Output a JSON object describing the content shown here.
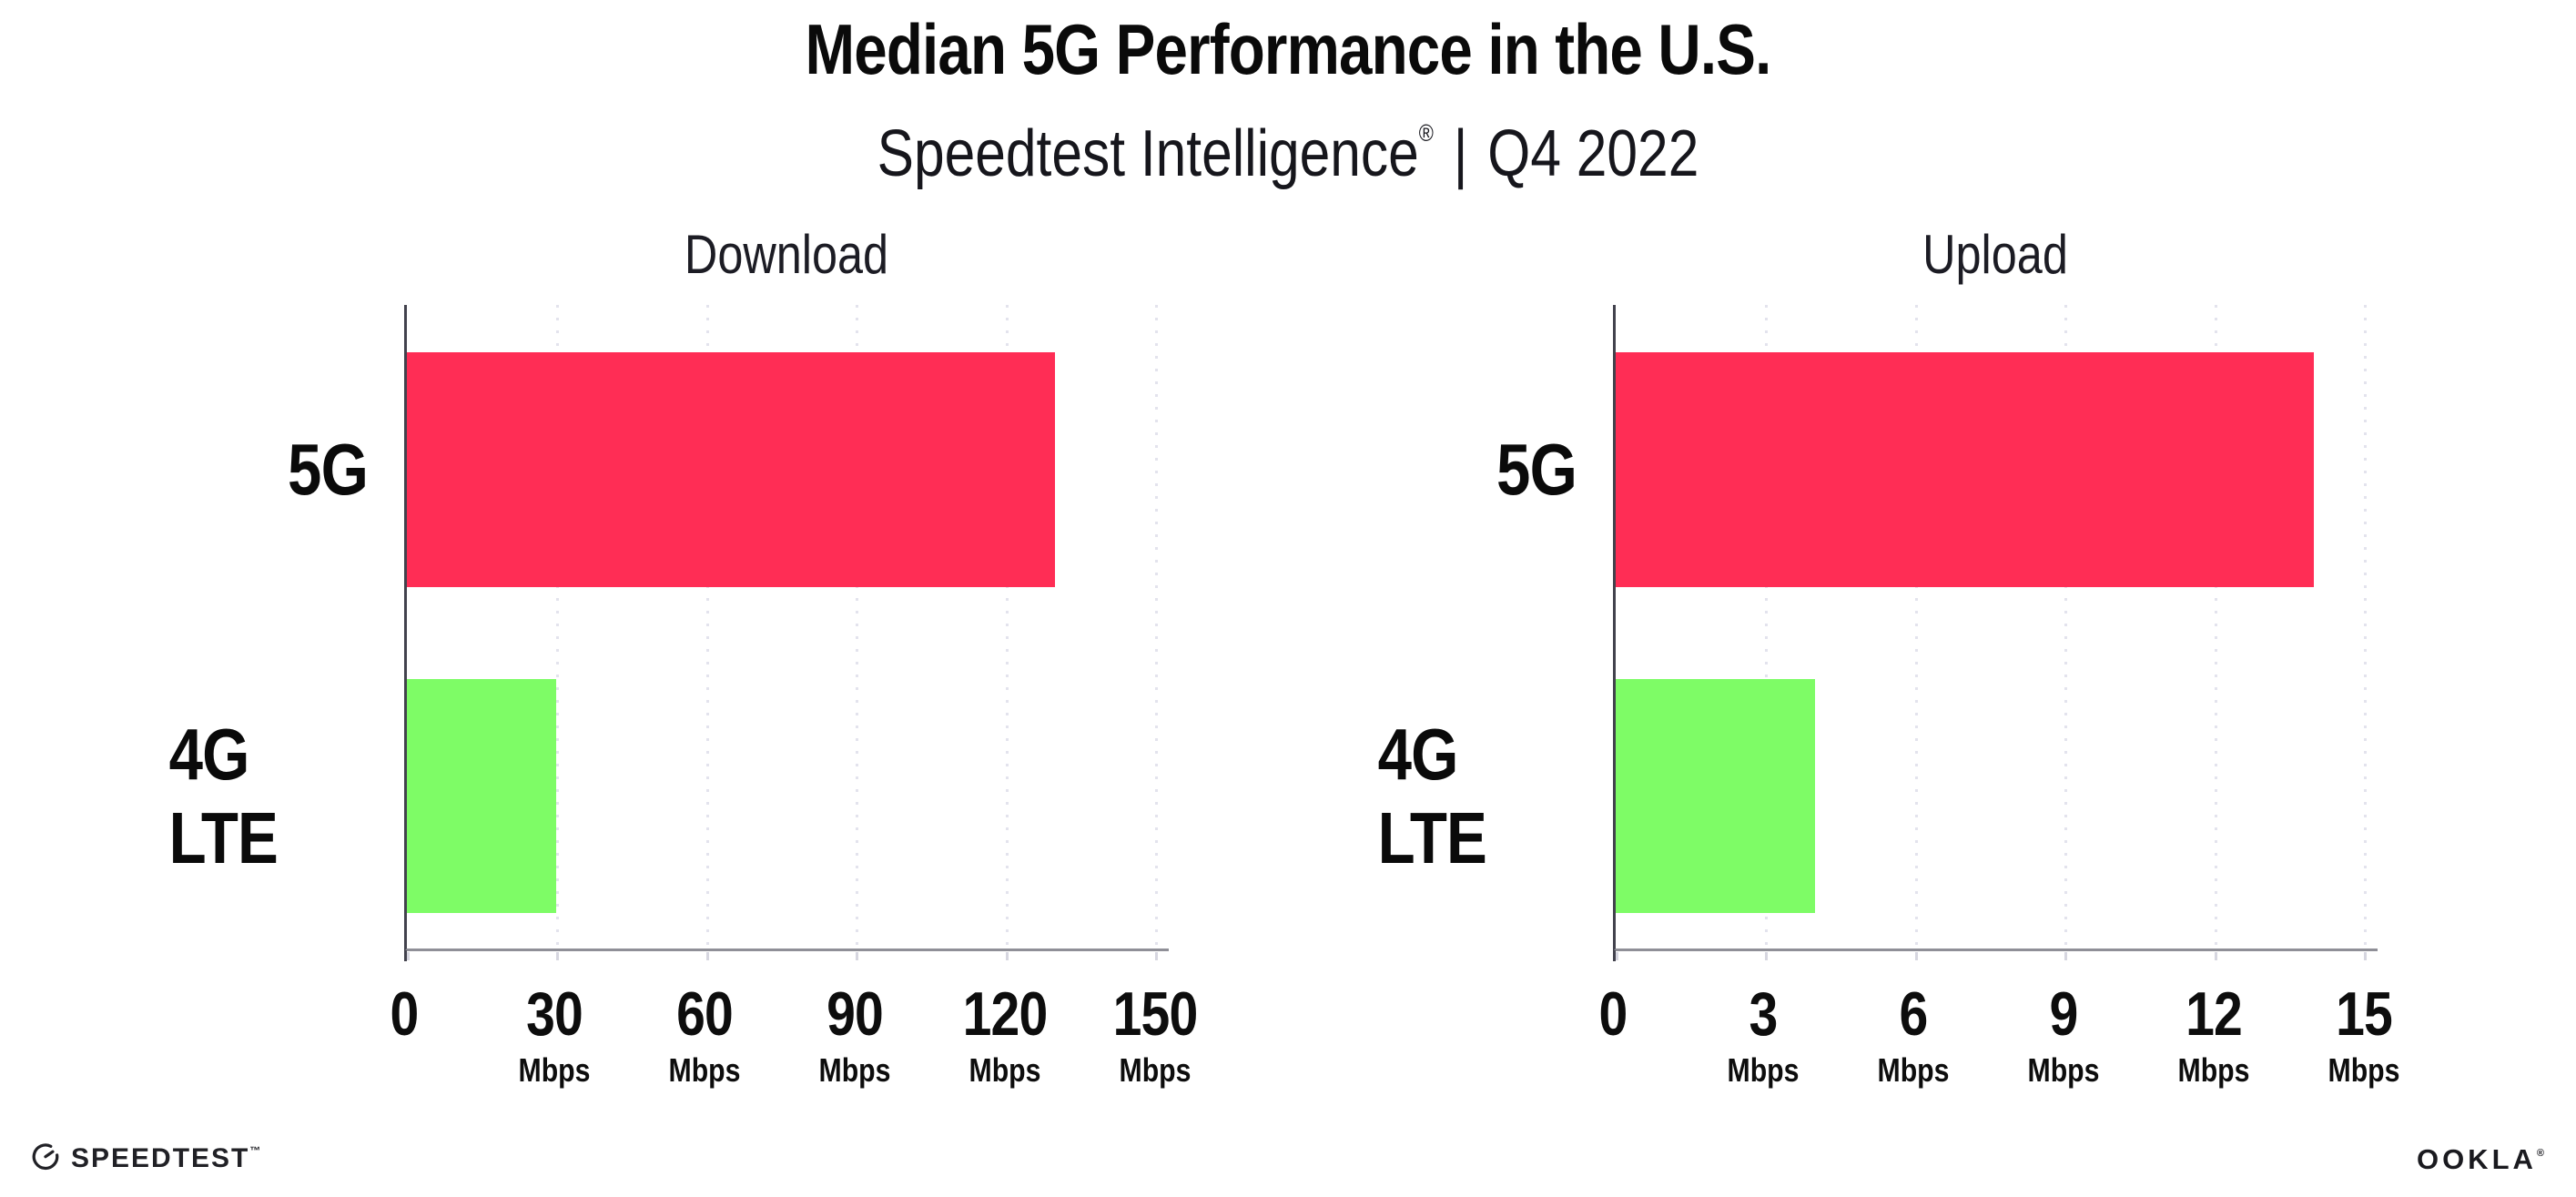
{
  "header": {
    "title": "Median 5G Performance in the U.S.",
    "subtitle_brand": "Speedtest Intelligence",
    "subtitle_registered": "®",
    "subtitle_separator": "|",
    "subtitle_period": "Q4 2022"
  },
  "chart_data": [
    {
      "type": "bar",
      "orientation": "horizontal",
      "title": "Download",
      "categories": [
        "5G",
        "4G LTE"
      ],
      "values": [
        130,
        30
      ],
      "unit": "Mbps",
      "xlim": [
        0,
        150
      ],
      "xticks": [
        0,
        30,
        60,
        90,
        120,
        150
      ],
      "tick_labels": [
        {
          "num": "0",
          "unit": ""
        },
        {
          "num": "30",
          "unit": "Mbps"
        },
        {
          "num": "60",
          "unit": "Mbps"
        },
        {
          "num": "90",
          "unit": "Mbps"
        },
        {
          "num": "120",
          "unit": "Mbps"
        },
        {
          "num": "150",
          "unit": "Mbps"
        }
      ],
      "bar_colors": [
        "#FF2D55",
        "#7EFC66"
      ],
      "grid": "vertical-dotted",
      "legend": "none"
    },
    {
      "type": "bar",
      "orientation": "horizontal",
      "title": "Upload",
      "categories": [
        "5G",
        "4G LTE"
      ],
      "values": [
        14,
        4
      ],
      "unit": "Mbps",
      "xlim": [
        0,
        15
      ],
      "xticks": [
        0,
        3,
        6,
        9,
        12,
        15
      ],
      "tick_labels": [
        {
          "num": "0",
          "unit": ""
        },
        {
          "num": "3",
          "unit": "Mbps"
        },
        {
          "num": "6",
          "unit": "Mbps"
        },
        {
          "num": "9",
          "unit": "Mbps"
        },
        {
          "num": "12",
          "unit": "Mbps"
        },
        {
          "num": "15",
          "unit": "Mbps"
        }
      ],
      "bar_colors": [
        "#FF2D55",
        "#7EFC66"
      ],
      "grid": "vertical-dotted",
      "legend": "none"
    }
  ],
  "colors": {
    "bar_5g": "#FF2D55",
    "bar_4g_lte": "#7EFC66",
    "y_axis": "#42424d",
    "x_axis": "#8f8f97",
    "gridline": "#e3e3ed",
    "text": "#111111"
  },
  "footer": {
    "speedtest_wordmark": "SPEEDTEST",
    "speedtest_mark": "™",
    "ookla_wordmark": "OOKLA",
    "ookla_mark": "®"
  }
}
